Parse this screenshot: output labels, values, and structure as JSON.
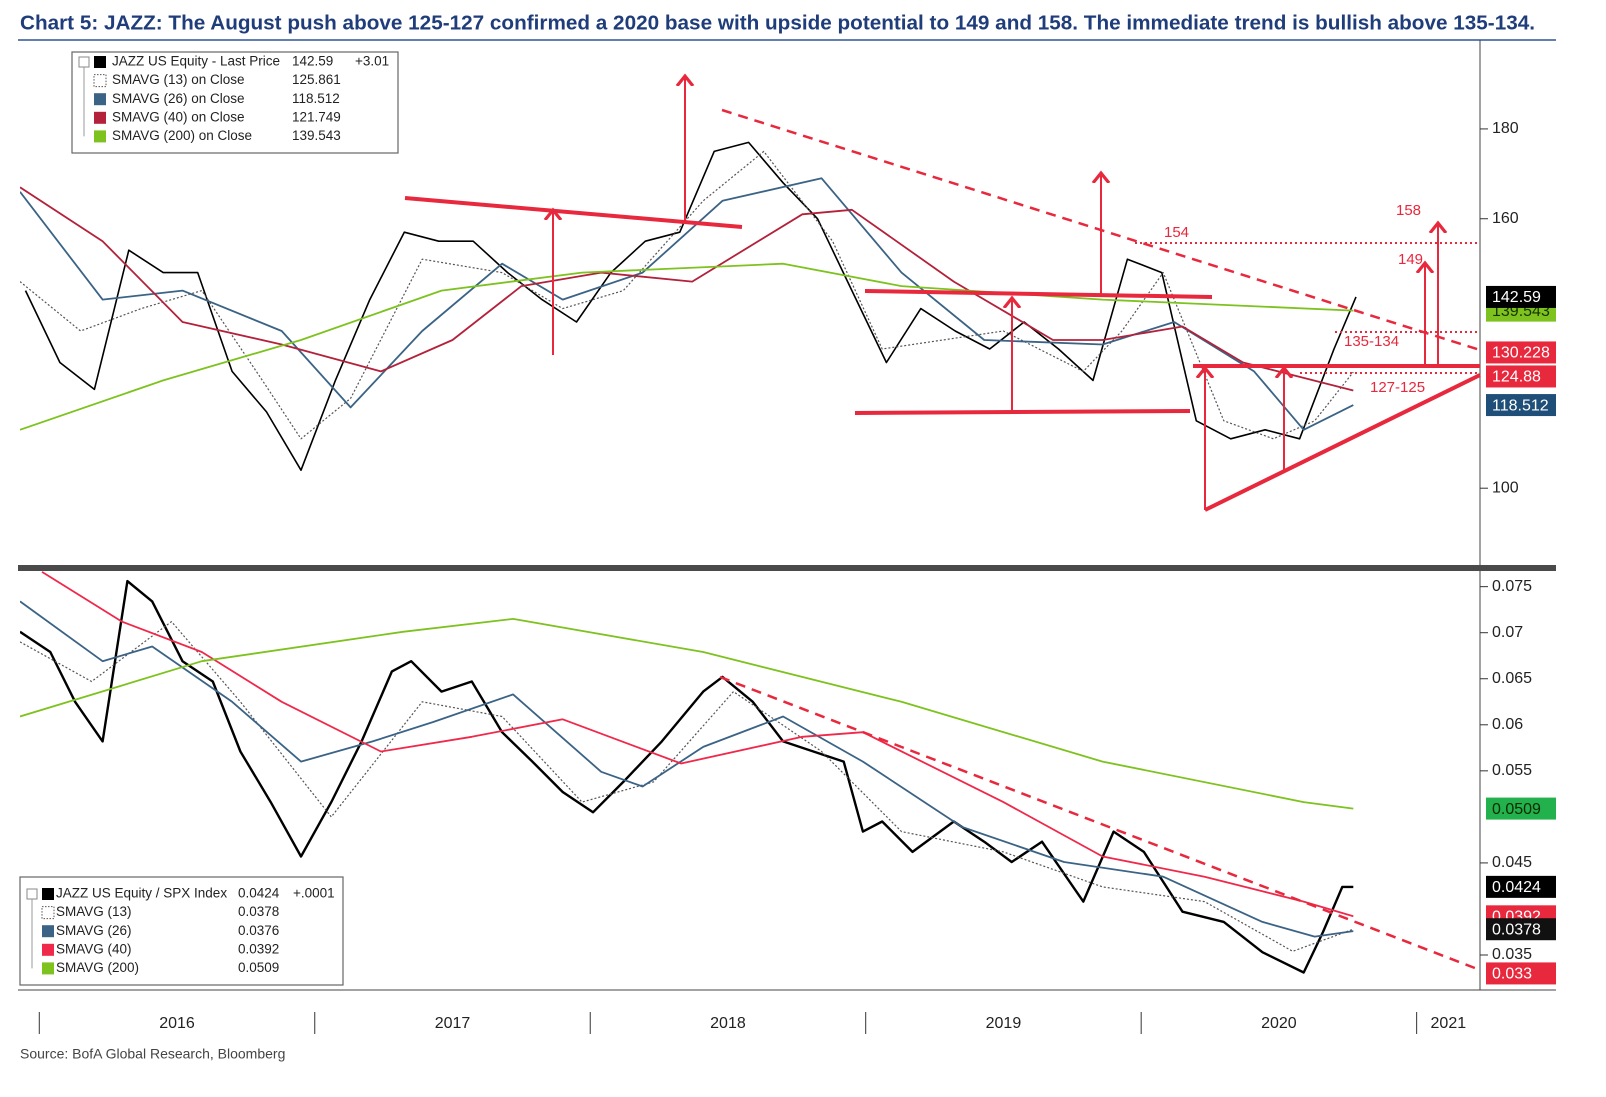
{
  "title": "Chart 5: JAZZ: The August push above 125-127 confirmed a 2020 base with upside potential to 149 and 158. The immediate trend is bullish above 135-134.",
  "source": "Source: BofA Global Research, Bloomberg",
  "chart_data": [
    {
      "type": "line",
      "xlim": [
        2015.93,
        2021.23
      ],
      "ylim": [
        82.9,
        199.8
      ],
      "yticks": [
        100,
        160,
        180
      ],
      "series": [
        {
          "name": "JAZZ US Equity - Last Price",
          "color": "#000000",
          "legend_value": 142.59,
          "change": "+3.01",
          "x": [
            2015.95,
            2016.075,
            2016.2,
            2016.325,
            2016.45,
            2016.575,
            2016.7,
            2016.825,
            2016.95,
            2017.075,
            2017.2,
            2017.325,
            2017.45,
            2017.575,
            2017.7,
            2017.825,
            2017.95,
            2018.075,
            2018.2,
            2018.325,
            2018.45,
            2018.575,
            2018.7,
            2018.825,
            2018.95,
            2019.075,
            2019.2,
            2019.325,
            2019.45,
            2019.575,
            2019.7,
            2019.825,
            2019.95,
            2020.075,
            2020.2,
            2020.325,
            2020.45,
            2020.575,
            2020.7,
            2020.78
          ],
          "values": [
            144,
            128,
            122,
            153,
            148,
            148,
            126,
            117,
            104,
            124,
            142,
            157,
            155,
            155,
            148,
            142,
            137,
            148,
            155,
            157,
            175,
            177,
            168,
            160,
            144,
            128,
            140,
            135,
            131,
            137,
            131,
            124,
            151,
            148,
            115,
            111,
            113,
            111,
            131,
            142.59
          ]
        },
        {
          "name": "SMAVG (13)  on Close",
          "color": "#555555",
          "style": "dotted",
          "legend_value": 125.861,
          "x": [
            2015.93,
            2016.15,
            2016.37,
            2016.59,
            2016.81,
            2016.95,
            2017.13,
            2017.39,
            2017.68,
            2017.9,
            2018.12,
            2018.41,
            2018.63,
            2018.88,
            2019.06,
            2019.28,
            2019.5,
            2019.79,
            2019.93,
            2020.08,
            2020.3,
            2020.48,
            2020.63,
            2020.77
          ],
          "values": [
            146,
            135,
            140,
            144,
            124,
            111,
            120,
            151,
            148,
            140,
            144,
            164,
            175,
            155,
            131,
            133,
            135,
            126,
            135,
            148,
            115,
            111,
            115,
            125.861
          ]
        },
        {
          "name": "SMAVG (26)  on Close",
          "color": "#3b6385",
          "legend_value": 118.512,
          "x": [
            2015.93,
            2016.23,
            2016.52,
            2016.88,
            2017.13,
            2017.39,
            2017.68,
            2017.9,
            2018.19,
            2018.48,
            2018.84,
            2019.13,
            2019.43,
            2019.86,
            2020.12,
            2020.41,
            2020.59,
            2020.77
          ],
          "values": [
            166,
            142,
            144,
            135,
            118,
            135,
            150,
            142,
            148,
            164,
            169,
            148,
            133,
            132,
            137,
            126,
            113,
            118.512
          ]
        },
        {
          "name": "SMAVG (40)  on Close",
          "color": "#b3213a",
          "legend_value": 121.749,
          "x": [
            2015.93,
            2016.23,
            2016.52,
            2016.88,
            2017.24,
            2017.5,
            2017.75,
            2018.04,
            2018.37,
            2018.77,
            2018.95,
            2019.32,
            2019.68,
            2019.86,
            2020.15,
            2020.37,
            2020.77
          ],
          "values": [
            167,
            155,
            137,
            132,
            126,
            133,
            145,
            148,
            146,
            161,
            162,
            146,
            133,
            133,
            136,
            128,
            121.749
          ]
        },
        {
          "name": "SMAVG (200)  on Close",
          "color": "#7dc21e",
          "legend_value": 139.543,
          "x": [
            2015.93,
            2016.45,
            2016.95,
            2017.46,
            2017.97,
            2018.7,
            2019.13,
            2019.86,
            2020.77
          ],
          "values": [
            113,
            124,
            133,
            144,
            148,
            150,
            145,
            142,
            139.543
          ]
        }
      ],
      "price_tags": [
        {
          "value": 139.543,
          "color": "#7dc21e",
          "text_color": "#1a3300"
        },
        {
          "value": 142.59,
          "color": "#000000",
          "text_color": "#ffffff"
        },
        {
          "value": 130.228,
          "color": "#e8283c",
          "text_color": "#ffffff"
        },
        {
          "value": 124.88,
          "color": "#e8283c",
          "text_color": "#ffffff"
        },
        {
          "value": 118.512,
          "color": "#1f4e79",
          "text_color": "#ffffff"
        }
      ],
      "annotations": [
        154,
        158,
        149,
        "135-134",
        "127-125"
      ]
    },
    {
      "type": "line",
      "xlim": [
        2015.93,
        2021.23
      ],
      "ylim": [
        0.0312,
        0.0767
      ],
      "yticks": [
        0.035,
        0.045,
        0.055,
        0.06,
        0.065,
        0.07,
        0.075
      ],
      "xticks": [
        2016,
        2017,
        2018,
        2019,
        2020,
        2021
      ],
      "series": [
        {
          "name": "JAZZ US Equity / SPX Index",
          "color": "#000000",
          "legend_value": 0.0424,
          "change": "+.0001",
          "x": [
            2015.93,
            2016.04,
            2016.13,
            2016.23,
            2016.32,
            2016.41,
            2016.52,
            2016.63,
            2016.73,
            2016.84,
            2016.95,
            2017.06,
            2017.17,
            2017.28,
            2017.35,
            2017.46,
            2017.57,
            2017.68,
            2017.79,
            2017.9,
            2018.01,
            2018.12,
            2018.26,
            2018.41,
            2018.48,
            2018.59,
            2018.7,
            2018.81,
            2018.92,
            2018.99,
            2019.06,
            2019.17,
            2019.32,
            2019.43,
            2019.53,
            2019.64,
            2019.79,
            2019.9,
            2020.01,
            2020.15,
            2020.3,
            2020.44,
            2020.59,
            2020.66,
            2020.73,
            2020.77
          ],
          "values": [
            0.0701,
            0.0679,
            0.0625,
            0.0582,
            0.0756,
            0.0734,
            0.0669,
            0.0647,
            0.0571,
            0.0516,
            0.0457,
            0.0516,
            0.0582,
            0.0658,
            0.0669,
            0.0636,
            0.0647,
            0.0592,
            0.056,
            0.0527,
            0.0505,
            0.0538,
            0.0582,
            0.0636,
            0.0652,
            0.0625,
            0.0582,
            0.0571,
            0.056,
            0.0484,
            0.0495,
            0.0462,
            0.0495,
            0.0473,
            0.0451,
            0.0473,
            0.0408,
            0.0484,
            0.0462,
            0.0397,
            0.0386,
            0.0353,
            0.0331,
            0.0375,
            0.0424,
            0.0424
          ]
        },
        {
          "name": "SMAVG (13)",
          "color": "#555555",
          "style": "dotted",
          "legend_value": 0.0378,
          "x": [
            2015.93,
            2016.19,
            2016.48,
            2016.73,
            2017.06,
            2017.39,
            2017.68,
            2017.97,
            2018.23,
            2018.52,
            2018.84,
            2019.13,
            2019.5,
            2019.86,
            2020.23,
            2020.55,
            2020.77
          ],
          "values": [
            0.069,
            0.0647,
            0.0712,
            0.0625,
            0.05,
            0.0625,
            0.0609,
            0.0516,
            0.0538,
            0.0636,
            0.0571,
            0.0484,
            0.0462,
            0.0424,
            0.0408,
            0.0354,
            0.0378
          ]
        },
        {
          "name": "SMAVG (26)",
          "color": "#3b6385",
          "legend_value": 0.0376,
          "x": [
            2015.93,
            2016.23,
            2016.41,
            2016.7,
            2016.95,
            2017.21,
            2017.43,
            2017.72,
            2018.04,
            2018.19,
            2018.41,
            2018.7,
            2018.99,
            2019.35,
            2019.72,
            2020.08,
            2020.44,
            2020.63,
            2020.77
          ],
          "values": [
            0.0734,
            0.0669,
            0.0685,
            0.0625,
            0.056,
            0.0582,
            0.0603,
            0.0633,
            0.0549,
            0.0533,
            0.0576,
            0.0609,
            0.056,
            0.0489,
            0.0451,
            0.0435,
            0.0386,
            0.037,
            0.0376
          ]
        },
        {
          "name": "SMAVG (40)",
          "color": "#f0284a",
          "legend_value": 0.0392,
          "x": [
            2016.01,
            2016.3,
            2016.59,
            2016.88,
            2017.24,
            2017.57,
            2017.9,
            2018.33,
            2018.77,
            2018.99,
            2019.5,
            2019.86,
            2020.23,
            2020.59,
            2020.77
          ],
          "values": [
            0.0766,
            0.0712,
            0.0679,
            0.0625,
            0.0571,
            0.0587,
            0.0606,
            0.0558,
            0.0587,
            0.0592,
            0.0516,
            0.0457,
            0.0435,
            0.0408,
            0.0392
          ]
        },
        {
          "name": "SMAVG (200)",
          "color": "#7dc21e",
          "legend_value": 0.0509,
          "x": [
            2015.93,
            2016.59,
            2017.32,
            2017.72,
            2018.41,
            2019.13,
            2019.86,
            2020.59,
            2020.77
          ],
          "values": [
            0.0609,
            0.0669,
            0.0701,
            0.0715,
            0.0679,
            0.0625,
            0.056,
            0.0516,
            0.0509
          ]
        }
      ],
      "price_tags": [
        {
          "value": 0.0509,
          "color": "#22b14c",
          "text_color": "#0a2a00"
        },
        {
          "value": 0.0392,
          "color": "#e8283c",
          "text_color": "#ffffff"
        },
        {
          "value": 0.0378,
          "color": "#111111",
          "text_color": "#ffffff"
        },
        {
          "value": 0.0424,
          "color": "#000000",
          "text_color": "#ffffff"
        },
        {
          "value": 0.033,
          "color": "#e8283c",
          "text_color": "#ffffff"
        }
      ]
    }
  ]
}
